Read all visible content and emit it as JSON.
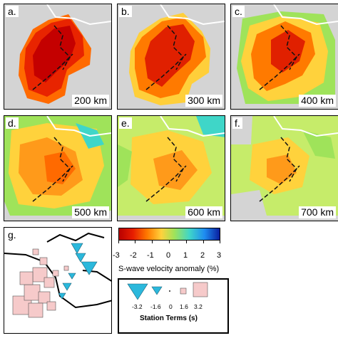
{
  "panels": [
    {
      "label": "a.",
      "depth": "200 km"
    },
    {
      "label": "b.",
      "depth": "300 km"
    },
    {
      "label": "c.",
      "depth": "400 km"
    },
    {
      "label": "d.",
      "depth": "500 km"
    },
    {
      "label": "e.",
      "depth": "600 km"
    },
    {
      "label": "f.",
      "depth": "700 km"
    }
  ],
  "panel_g_label": "g.",
  "colorbar": {
    "ticks": [
      "-3",
      "-2",
      "-1",
      "0",
      "1",
      "2",
      "3"
    ],
    "title": "S-wave velocity anomaly (%)",
    "colors": [
      "#b80000",
      "#e81e00",
      "#ff7a00",
      "#ffd23c",
      "#9fe35a",
      "#3fd6c8",
      "#1e8cf0",
      "#0a1ea0"
    ]
  },
  "station_terms": {
    "values": [
      "-3.2",
      "-1.6",
      "0",
      "1.6",
      "3.2"
    ],
    "title": "Station Terms (s)",
    "fast_color": "#2bb8dc",
    "slow_color": "#f6caca"
  }
}
